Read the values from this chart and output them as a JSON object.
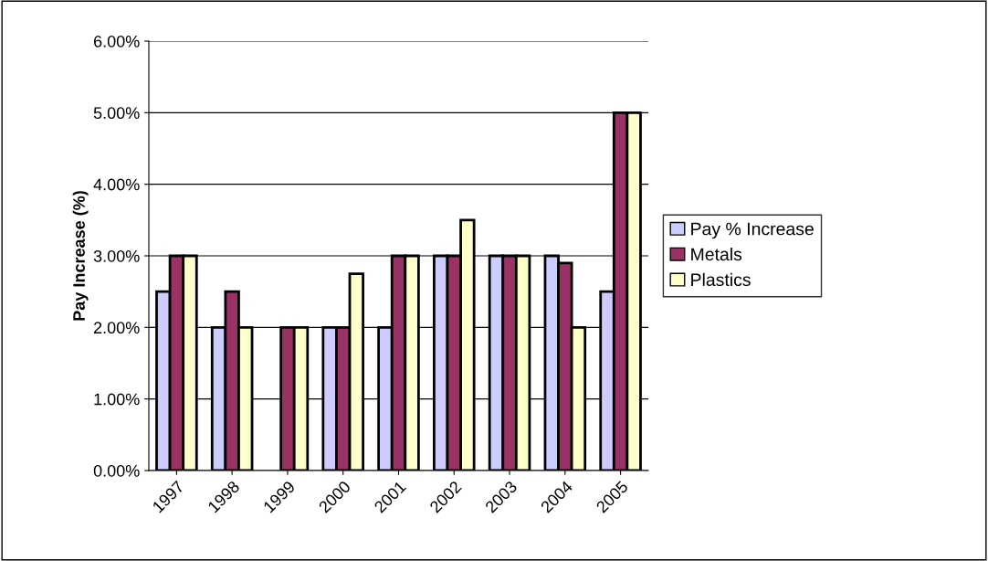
{
  "chart_data": {
    "type": "bar",
    "ylabel": "Pay Increase (%)",
    "categories": [
      "1997",
      "1998",
      "1999",
      "2000",
      "2001",
      "2002",
      "2003",
      "2004",
      "2005"
    ],
    "series": [
      {
        "name": "Pay % Increase",
        "color": "#ccccff",
        "values": [
          2.5,
          2,
          null,
          2,
          2,
          3,
          3,
          3,
          2.5
        ]
      },
      {
        "name": "Metals",
        "color": "#993366",
        "values": [
          3,
          2.5,
          2,
          2,
          3,
          3,
          3,
          2.9,
          5
        ]
      },
      {
        "name": "Plastics",
        "color": "#ffffcc",
        "values": [
          3,
          2,
          2,
          2.75,
          3,
          3.5,
          3,
          2,
          5
        ]
      }
    ],
    "ylim": [
      0,
      6
    ],
    "yticks": [
      {
        "value": 0,
        "label": "0.00%"
      },
      {
        "value": 1,
        "label": "1.00%"
      },
      {
        "value": 2,
        "label": "2.00%"
      },
      {
        "value": 3,
        "label": "3.00%"
      },
      {
        "value": 4,
        "label": "4.00%"
      },
      {
        "value": 5,
        "label": "5.00%"
      },
      {
        "value": 6,
        "label": "6.00%"
      }
    ],
    "grid": "y",
    "legend": "right"
  }
}
